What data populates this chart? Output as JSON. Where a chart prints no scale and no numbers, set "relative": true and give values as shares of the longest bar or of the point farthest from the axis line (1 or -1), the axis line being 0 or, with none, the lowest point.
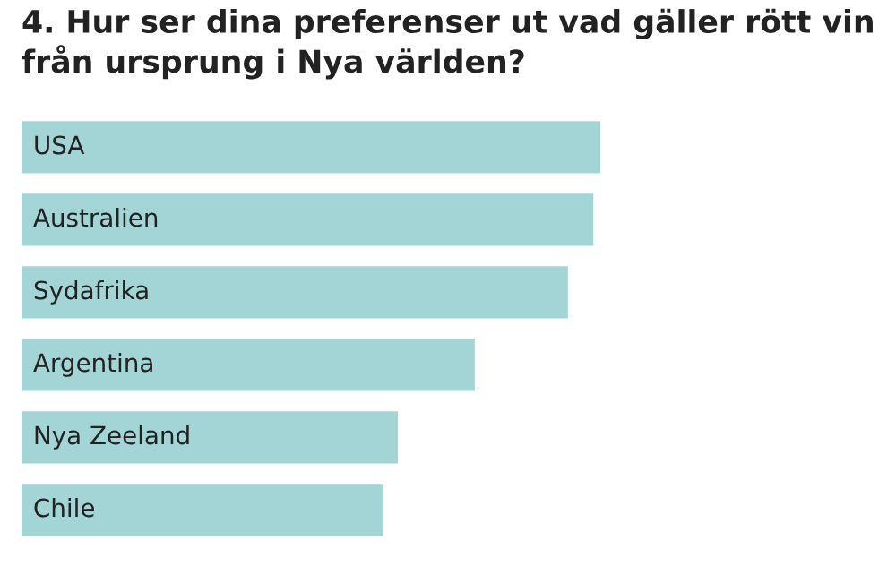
{
  "chart_data": {
    "type": "bar",
    "orientation": "horizontal",
    "relative": true,
    "title": "4. Hur ser dina preferenser ut vad gäller rött vin från ursprung i Nya världen?",
    "categories": [
      "USA",
      "Australien",
      "Sydafrika",
      "Argentina",
      "Nya Zeeland",
      "Chile"
    ],
    "values": [
      1,
      0.988,
      0.944,
      0.783,
      0.65,
      0.625
    ],
    "color": "#a3d5d6"
  }
}
